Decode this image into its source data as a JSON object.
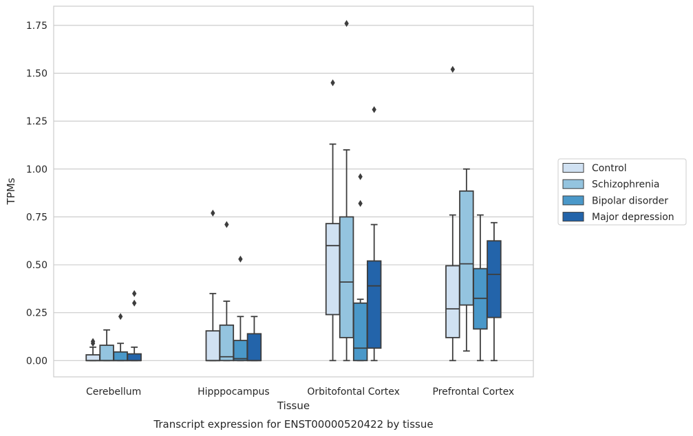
{
  "chart_data": {
    "type": "box",
    "title": "",
    "caption": "Transcript expression for ENST00000520422 by tissue",
    "xlabel": "Tissue",
    "ylabel": "TPMs",
    "ylim": [
      -0.085,
      1.85
    ],
    "yticks": [
      0.0,
      0.25,
      0.5,
      0.75,
      1.0,
      1.25,
      1.5,
      1.75
    ],
    "ytick_labels": [
      "0.00",
      "0.25",
      "0.50",
      "0.75",
      "1.00",
      "1.25",
      "1.50",
      "1.75"
    ],
    "grid": "horizontal",
    "legend_position": "right",
    "categories": [
      "Cerebellum",
      "Hipppocampus",
      "Orbitofontal Cortex",
      "Prefrontal Cortex"
    ],
    "series": [
      {
        "name": "Control",
        "color": "#d0e1f2",
        "boxes": [
          {
            "whislo": 0.0,
            "q1": 0.0,
            "med": 0.0,
            "q3": 0.03,
            "whishi": 0.07,
            "fliers": [
              0.09,
              0.1
            ]
          },
          {
            "whislo": 0.0,
            "q1": 0.0,
            "med": 0.0,
            "q3": 0.155,
            "whishi": 0.35,
            "fliers": [
              0.77
            ]
          },
          {
            "whislo": 0.0,
            "q1": 0.24,
            "med": 0.6,
            "q3": 0.715,
            "whishi": 1.13,
            "fliers": [
              1.45
            ]
          },
          {
            "whislo": 0.0,
            "q1": 0.12,
            "med": 0.27,
            "q3": 0.495,
            "whishi": 0.76,
            "fliers": [
              1.52
            ]
          }
        ]
      },
      {
        "name": "Schizophrenia",
        "color": "#94c4df",
        "boxes": [
          {
            "whislo": 0.0,
            "q1": 0.0,
            "med": 0.0,
            "q3": 0.08,
            "whishi": 0.16,
            "fliers": []
          },
          {
            "whislo": 0.0,
            "q1": 0.0,
            "med": 0.02,
            "q3": 0.185,
            "whishi": 0.31,
            "fliers": [
              0.71
            ]
          },
          {
            "whislo": 0.0,
            "q1": 0.12,
            "med": 0.41,
            "q3": 0.75,
            "whishi": 1.1,
            "fliers": [
              1.76
            ]
          },
          {
            "whislo": 0.05,
            "q1": 0.29,
            "med": 0.505,
            "q3": 0.885,
            "whishi": 1.0,
            "fliers": []
          }
        ]
      },
      {
        "name": "Bipolar disorder",
        "color": "#4a98c9",
        "boxes": [
          {
            "whislo": 0.0,
            "q1": 0.0,
            "med": 0.0,
            "q3": 0.045,
            "whishi": 0.09,
            "fliers": [
              0.23
            ]
          },
          {
            "whislo": 0.0,
            "q1": 0.0,
            "med": 0.01,
            "q3": 0.105,
            "whishi": 0.23,
            "fliers": [
              0.53
            ]
          },
          {
            "whislo": 0.0,
            "q1": 0.0,
            "med": 0.065,
            "q3": 0.3,
            "whishi": 0.32,
            "fliers": [
              0.82,
              0.96
            ]
          },
          {
            "whislo": 0.0,
            "q1": 0.165,
            "med": 0.325,
            "q3": 0.48,
            "whishi": 0.76,
            "fliers": []
          }
        ]
      },
      {
        "name": "Major depression",
        "color": "#2364aa",
        "boxes": [
          {
            "whislo": 0.0,
            "q1": 0.0,
            "med": 0.0,
            "q3": 0.035,
            "whishi": 0.07,
            "fliers": [
              0.3,
              0.35
            ]
          },
          {
            "whislo": 0.0,
            "q1": 0.0,
            "med": 0.0,
            "q3": 0.14,
            "whishi": 0.23,
            "fliers": []
          },
          {
            "whislo": 0.0,
            "q1": 0.065,
            "med": 0.39,
            "q3": 0.52,
            "whishi": 0.71,
            "fliers": [
              1.31
            ]
          },
          {
            "whislo": 0.0,
            "q1": 0.225,
            "med": 0.45,
            "q3": 0.625,
            "whishi": 0.72,
            "fliers": []
          }
        ]
      }
    ]
  }
}
